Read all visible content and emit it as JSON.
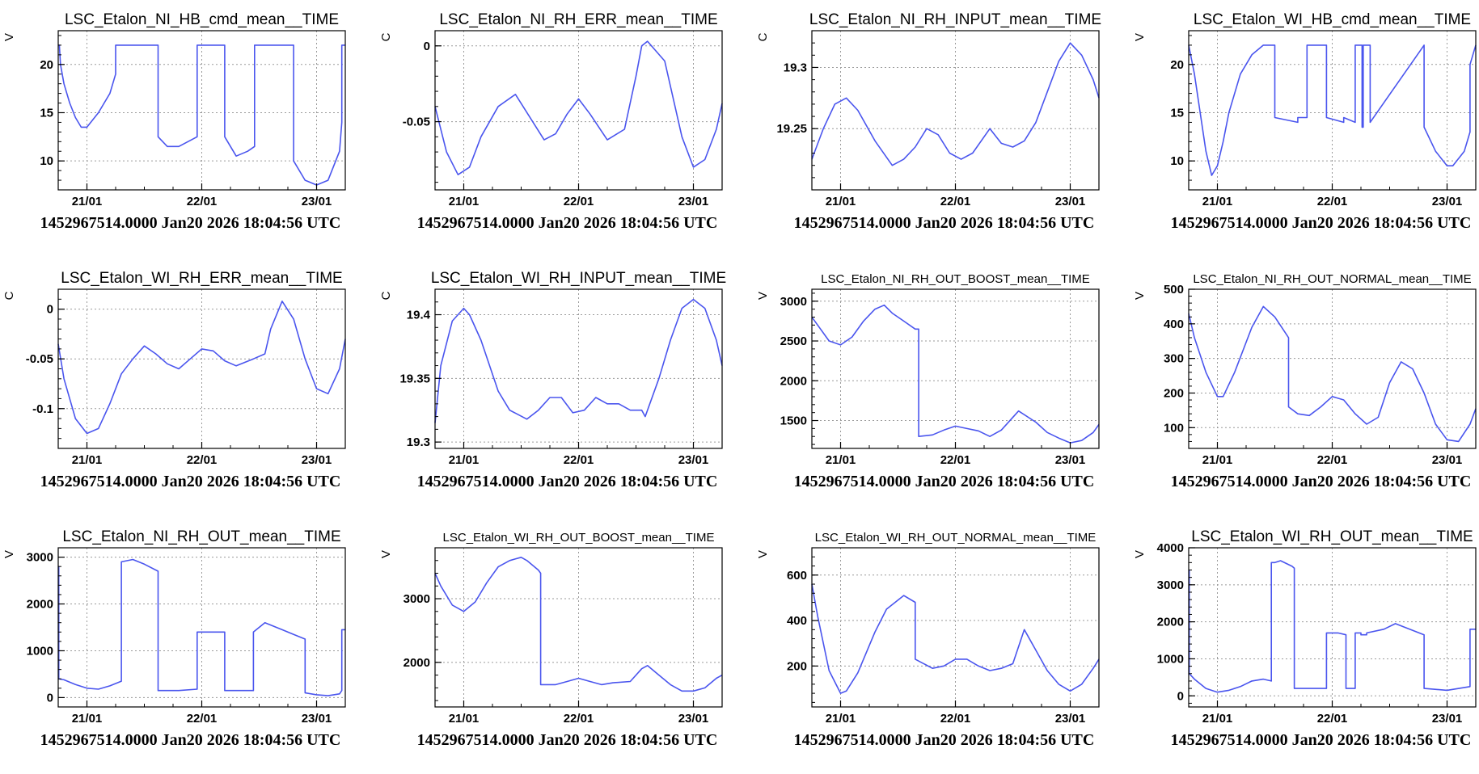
{
  "footer_text": "1452967514.0000 Jan20 2026 18:04:56 UTC",
  "line_color": "#4a55ee",
  "chart_data": [
    {
      "type": "line",
      "title": "LSC_Etalon_NI_HB_cmd_mean__TIME",
      "ylabel": "V",
      "ylim": [
        7,
        23.5
      ],
      "yticks": [
        10,
        15,
        20
      ],
      "xlim": [
        20.75,
        23.25
      ],
      "xticks": [
        21,
        22,
        23
      ],
      "xticklabels": [
        "21/01",
        "22/01",
        "23/01"
      ],
      "x": [
        20.75,
        20.76,
        20.77,
        20.8,
        20.85,
        20.9,
        20.95,
        21.0,
        21.1,
        21.2,
        21.25,
        21.25,
        21.5,
        21.62,
        21.62,
        21.7,
        21.8,
        21.96,
        21.96,
        22.2,
        22.2,
        22.3,
        22.4,
        22.46,
        22.46,
        22.8,
        22.8,
        22.9,
        23.0,
        23.1,
        23.2,
        23.22,
        23.22,
        23.25
      ],
      "y": [
        22,
        22,
        20,
        18,
        16,
        14.5,
        13.5,
        13.5,
        15,
        17,
        19,
        22,
        22,
        22,
        12.5,
        11.5,
        11.5,
        12.5,
        22,
        22,
        12.5,
        10.5,
        11,
        11.5,
        22,
        22,
        10,
        8,
        7.5,
        8,
        11,
        14,
        22,
        22
      ]
    },
    {
      "type": "line",
      "title": "LSC_Etalon_NI_RH_ERR_mean__TIME",
      "ylabel": "C",
      "ylim": [
        -0.095,
        0.01
      ],
      "yticks": [
        -0.05,
        0
      ],
      "xlim": [
        20.75,
        23.25
      ],
      "xticks": [
        21,
        22,
        23
      ],
      "xticklabels": [
        "21/01",
        "22/01",
        "23/01"
      ],
      "x": [
        20.75,
        20.85,
        20.95,
        21.05,
        21.15,
        21.3,
        21.45,
        21.6,
        21.7,
        21.8,
        21.9,
        22.0,
        22.1,
        22.25,
        22.4,
        22.5,
        22.55,
        22.6,
        22.75,
        22.9,
        23.0,
        23.1,
        23.2,
        23.25
      ],
      "y": [
        -0.04,
        -0.07,
        -0.085,
        -0.08,
        -0.06,
        -0.04,
        -0.032,
        -0.05,
        -0.062,
        -0.058,
        -0.045,
        -0.035,
        -0.045,
        -0.062,
        -0.055,
        -0.02,
        0.0,
        0.003,
        -0.01,
        -0.06,
        -0.08,
        -0.075,
        -0.055,
        -0.038
      ]
    },
    {
      "type": "line",
      "title": "LSC_Etalon_NI_RH_INPUT_mean__TIME",
      "ylabel": "C",
      "ylim": [
        19.2,
        19.33
      ],
      "yticks": [
        19.25,
        19.3
      ],
      "xlim": [
        20.75,
        23.25
      ],
      "xticks": [
        21,
        22,
        23
      ],
      "xticklabels": [
        "21/01",
        "22/01",
        "23/01"
      ],
      "x": [
        20.75,
        20.85,
        20.95,
        21.05,
        21.15,
        21.3,
        21.45,
        21.55,
        21.65,
        21.75,
        21.85,
        21.95,
        22.05,
        22.15,
        22.3,
        22.4,
        22.5,
        22.6,
        22.7,
        22.8,
        22.9,
        23.0,
        23.1,
        23.2,
        23.25
      ],
      "y": [
        19.225,
        19.25,
        19.27,
        19.275,
        19.265,
        19.24,
        19.22,
        19.225,
        19.235,
        19.25,
        19.245,
        19.23,
        19.225,
        19.23,
        19.25,
        19.238,
        19.235,
        19.24,
        19.255,
        19.28,
        19.305,
        19.32,
        19.31,
        19.29,
        19.275
      ]
    },
    {
      "type": "line",
      "title": "LSC_Etalon_WI_HB_cmd_mean__TIME",
      "ylabel": "V",
      "ylim": [
        7,
        23.5
      ],
      "yticks": [
        10,
        15,
        20
      ],
      "xlim": [
        20.75,
        23.25
      ],
      "xticks": [
        21,
        22,
        23
      ],
      "xticklabels": [
        "21/01",
        "22/01",
        "23/01"
      ],
      "x": [
        20.75,
        20.8,
        20.85,
        20.9,
        20.95,
        21.0,
        21.05,
        21.1,
        21.2,
        21.3,
        21.4,
        21.48,
        21.5,
        21.5,
        21.7,
        21.7,
        21.78,
        21.78,
        21.95,
        21.95,
        22.1,
        22.1,
        22.2,
        22.2,
        22.26,
        22.26,
        22.27,
        22.27,
        22.33,
        22.33,
        22.8,
        22.8,
        22.9,
        23.0,
        23.05,
        23.15,
        23.2,
        23.2,
        23.25
      ],
      "y": [
        22,
        19,
        15,
        11,
        8.5,
        9.5,
        12,
        15,
        19,
        21,
        22,
        22,
        22,
        14.5,
        14,
        14.5,
        14.5,
        22,
        22,
        14.5,
        14,
        14.5,
        14,
        22,
        22,
        13.5,
        13.5,
        22,
        22,
        14,
        22,
        13.5,
        11,
        9.5,
        9.5,
        11,
        13,
        20,
        22
      ]
    },
    {
      "type": "line",
      "title": "LSC_Etalon_WI_RH_ERR_mean__TIME",
      "ylabel": "C",
      "ylim": [
        -0.14,
        0.02
      ],
      "yticks": [
        -0.1,
        -0.05,
        0
      ],
      "xlim": [
        20.75,
        23.25
      ],
      "xticks": [
        21,
        22,
        23
      ],
      "xticklabels": [
        "21/01",
        "22/01",
        "23/01"
      ],
      "x": [
        20.75,
        20.8,
        20.9,
        21.0,
        21.1,
        21.2,
        21.3,
        21.4,
        21.5,
        21.6,
        21.7,
        21.8,
        21.9,
        22.0,
        22.1,
        22.2,
        22.3,
        22.45,
        22.55,
        22.6,
        22.7,
        22.8,
        22.9,
        23.0,
        23.1,
        23.2,
        23.25
      ],
      "y": [
        -0.035,
        -0.07,
        -0.11,
        -0.125,
        -0.12,
        -0.095,
        -0.065,
        -0.05,
        -0.037,
        -0.045,
        -0.055,
        -0.06,
        -0.05,
        -0.04,
        -0.042,
        -0.052,
        -0.057,
        -0.05,
        -0.045,
        -0.02,
        0.008,
        -0.01,
        -0.05,
        -0.08,
        -0.085,
        -0.06,
        -0.03
      ]
    },
    {
      "type": "line",
      "title": "LSC_Etalon_WI_RH_INPUT_mean__TIME",
      "ylabel": "C",
      "ylim": [
        19.295,
        19.42
      ],
      "yticks": [
        19.3,
        19.35,
        19.4
      ],
      "xlim": [
        20.75,
        23.25
      ],
      "xticks": [
        21,
        22,
        23
      ],
      "xticklabels": [
        "21/01",
        "22/01",
        "23/01"
      ],
      "x": [
        20.75,
        20.8,
        20.9,
        21.0,
        21.05,
        21.15,
        21.3,
        21.4,
        21.55,
        21.65,
        21.75,
        21.85,
        21.95,
        22.05,
        22.15,
        22.25,
        22.35,
        22.45,
        22.55,
        22.58,
        22.7,
        22.8,
        22.9,
        23.0,
        23.1,
        23.2,
        23.25
      ],
      "y": [
        19.315,
        19.36,
        19.395,
        19.405,
        19.4,
        19.38,
        19.34,
        19.325,
        19.318,
        19.325,
        19.335,
        19.335,
        19.323,
        19.325,
        19.335,
        19.33,
        19.33,
        19.325,
        19.325,
        19.32,
        19.35,
        19.38,
        19.405,
        19.412,
        19.405,
        19.38,
        19.36
      ]
    },
    {
      "type": "line",
      "title": "LSC_Etalon_NI_RH_OUT_BOOST_mean__TIME",
      "ylabel": "V",
      "ylim": [
        1150,
        3150
      ],
      "yticks": [
        1500,
        2000,
        2500,
        3000
      ],
      "xlim": [
        20.75,
        23.25
      ],
      "xticks": [
        21,
        22,
        23
      ],
      "xticklabels": [
        "21/01",
        "22/01",
        "23/01"
      ],
      "x": [
        20.75,
        20.8,
        20.9,
        21.0,
        21.1,
        21.2,
        21.3,
        21.38,
        21.45,
        21.55,
        21.65,
        21.68,
        21.68,
        21.8,
        21.9,
        22.0,
        22.1,
        22.2,
        22.3,
        22.4,
        22.55,
        22.7,
        22.8,
        22.9,
        23.0,
        23.1,
        23.2,
        23.25
      ],
      "y": [
        2800,
        2700,
        2500,
        2450,
        2550,
        2750,
        2900,
        2950,
        2850,
        2750,
        2650,
        2650,
        1300,
        1320,
        1380,
        1430,
        1400,
        1370,
        1300,
        1380,
        1620,
        1480,
        1350,
        1280,
        1220,
        1250,
        1350,
        1450
      ]
    },
    {
      "type": "line",
      "title": "LSC_Etalon_NI_RH_OUT_NORMAL_mean__TIME",
      "ylabel": "V",
      "ylim": [
        40,
        500
      ],
      "yticks": [
        100,
        200,
        300,
        400,
        500
      ],
      "xlim": [
        20.75,
        23.25
      ],
      "xticks": [
        21,
        22,
        23
      ],
      "xticklabels": [
        "21/01",
        "22/01",
        "23/01"
      ],
      "x": [
        20.75,
        20.8,
        20.9,
        21.0,
        21.05,
        21.15,
        21.3,
        21.4,
        21.5,
        21.6,
        21.62,
        21.62,
        21.7,
        21.8,
        21.9,
        22.0,
        22.1,
        22.2,
        22.3,
        22.4,
        22.5,
        22.6,
        22.7,
        22.8,
        22.9,
        23.0,
        23.1,
        23.2,
        23.25
      ],
      "y": [
        430,
        360,
        260,
        190,
        190,
        260,
        390,
        450,
        420,
        370,
        360,
        160,
        140,
        135,
        160,
        190,
        180,
        140,
        110,
        130,
        230,
        290,
        270,
        200,
        110,
        65,
        60,
        110,
        155
      ]
    },
    {
      "type": "line",
      "title": "LSC_Etalon_NI_RH_OUT_mean__TIME",
      "ylabel": "V",
      "ylim": [
        -200,
        3200
      ],
      "yticks": [
        0,
        1000,
        2000,
        3000
      ],
      "xlim": [
        20.75,
        23.25
      ],
      "xticks": [
        21,
        22,
        23
      ],
      "xticklabels": [
        "21/01",
        "22/01",
        "23/01"
      ],
      "x": [
        20.75,
        20.755,
        20.755,
        20.8,
        20.9,
        21.0,
        21.1,
        21.2,
        21.3,
        21.3,
        21.4,
        21.5,
        21.62,
        21.62,
        21.8,
        21.96,
        21.96,
        22.2,
        22.2,
        22.45,
        22.45,
        22.55,
        22.7,
        22.8,
        22.9,
        22.9,
        23.0,
        23.1,
        23.2,
        23.22,
        23.22,
        23.25
      ],
      "y": [
        2800,
        2800,
        400,
        380,
        280,
        200,
        180,
        250,
        350,
        2900,
        2950,
        2850,
        2700,
        150,
        150,
        180,
        1400,
        1400,
        150,
        150,
        1400,
        1600,
        1450,
        1350,
        1250,
        100,
        60,
        40,
        80,
        150,
        1450,
        1450
      ]
    },
    {
      "type": "line",
      "title": "LSC_Etalon_WI_RH_OUT_BOOST_mean__TIME",
      "ylabel": "V",
      "ylim": [
        1300,
        3800
      ],
      "yticks": [
        2000,
        3000
      ],
      "xlim": [
        20.75,
        23.25
      ],
      "xticks": [
        21,
        22,
        23
      ],
      "xticklabels": [
        "21/01",
        "22/01",
        "23/01"
      ],
      "x": [
        20.75,
        20.8,
        20.9,
        21.0,
        21.1,
        21.2,
        21.3,
        21.4,
        21.5,
        21.55,
        21.65,
        21.67,
        21.67,
        21.8,
        21.9,
        22.0,
        22.1,
        22.2,
        22.3,
        22.45,
        22.55,
        22.6,
        22.7,
        22.8,
        22.9,
        23.0,
        23.1,
        23.2,
        23.25
      ],
      "y": [
        3400,
        3200,
        2900,
        2800,
        2950,
        3250,
        3500,
        3600,
        3650,
        3600,
        3450,
        3400,
        1650,
        1650,
        1700,
        1750,
        1700,
        1650,
        1680,
        1700,
        1900,
        1950,
        1800,
        1650,
        1550,
        1550,
        1600,
        1750,
        1800
      ]
    },
    {
      "type": "line",
      "title": "LSC_Etalon_WI_RH_OUT_NORMAL_mean__TIME",
      "ylabel": "V",
      "ylim": [
        20,
        720
      ],
      "yticks": [
        200,
        400,
        600
      ],
      "xlim": [
        20.75,
        23.25
      ],
      "xticks": [
        21,
        22,
        23
      ],
      "xticklabels": [
        "21/01",
        "22/01",
        "23/01"
      ],
      "x": [
        20.75,
        20.8,
        20.9,
        21.0,
        21.05,
        21.15,
        21.3,
        21.4,
        21.5,
        21.55,
        21.65,
        21.65,
        21.8,
        21.9,
        22.0,
        22.1,
        22.2,
        22.3,
        22.4,
        22.5,
        22.6,
        22.7,
        22.8,
        22.9,
        23.0,
        23.1,
        23.2,
        23.25
      ],
      "y": [
        560,
        420,
        180,
        80,
        90,
        170,
        350,
        450,
        490,
        510,
        480,
        230,
        190,
        200,
        230,
        230,
        200,
        180,
        190,
        210,
        360,
        270,
        180,
        120,
        90,
        120,
        190,
        230
      ]
    },
    {
      "type": "line",
      "title": "LSC_Etalon_WI_RH_OUT_mean__TIME",
      "ylabel": "V",
      "ylim": [
        -300,
        4000
      ],
      "yticks": [
        0,
        1000,
        2000,
        3000,
        4000
      ],
      "xlim": [
        20.75,
        23.25
      ],
      "xticks": [
        21,
        22,
        23
      ],
      "xticklabels": [
        "21/01",
        "22/01",
        "23/01"
      ],
      "x": [
        20.75,
        20.755,
        20.755,
        20.8,
        20.9,
        21.0,
        21.1,
        21.2,
        21.3,
        21.4,
        21.47,
        21.47,
        21.5,
        21.55,
        21.65,
        21.67,
        21.67,
        21.95,
        21.95,
        22.05,
        22.12,
        22.12,
        22.2,
        22.2,
        22.25,
        22.25,
        22.3,
        22.3,
        22.45,
        22.55,
        22.8,
        22.8,
        23.0,
        23.2,
        23.2,
        23.25
      ],
      "y": [
        3400,
        3400,
        600,
        450,
        200,
        100,
        150,
        250,
        400,
        450,
        400,
        3600,
        3600,
        3650,
        3500,
        3450,
        200,
        200,
        1700,
        1700,
        1650,
        200,
        200,
        1700,
        1700,
        1650,
        1650,
        1700,
        1800,
        1950,
        1650,
        200,
        150,
        250,
        1800,
        1800
      ]
    }
  ]
}
